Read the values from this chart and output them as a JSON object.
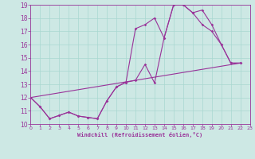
{
  "xlabel": "Windchill (Refroidissement éolien,°C)",
  "xlim": [
    0,
    23
  ],
  "ylim": [
    10,
    19
  ],
  "xticks": [
    0,
    1,
    2,
    3,
    4,
    5,
    6,
    7,
    8,
    9,
    10,
    11,
    12,
    13,
    14,
    15,
    16,
    17,
    18,
    19,
    20,
    21,
    22,
    23
  ],
  "yticks": [
    10,
    11,
    12,
    13,
    14,
    15,
    16,
    17,
    18,
    19
  ],
  "bg_color": "#cde8e4",
  "line_color": "#993399",
  "grid_color": "#a8d8d0",
  "line1_x": [
    0,
    1,
    2,
    3,
    4,
    5,
    6,
    7,
    8,
    9,
    10,
    11,
    12,
    13,
    14,
    15,
    16,
    17,
    18,
    19,
    20,
    21,
    22
  ],
  "line1_y": [
    12.0,
    11.3,
    10.4,
    10.65,
    10.9,
    10.6,
    10.5,
    10.4,
    11.75,
    12.8,
    13.15,
    17.2,
    17.5,
    18.0,
    16.5,
    19.0,
    19.0,
    18.4,
    18.6,
    17.5,
    16.0,
    14.6,
    14.6
  ],
  "line2_x": [
    0,
    1,
    2,
    3,
    4,
    5,
    6,
    7,
    8,
    9,
    10,
    11,
    12,
    13,
    14,
    15,
    16,
    17,
    18,
    19,
    20,
    21,
    22
  ],
  "line2_y": [
    12.0,
    11.3,
    10.4,
    10.65,
    10.9,
    10.6,
    10.5,
    10.4,
    11.75,
    12.8,
    13.15,
    13.3,
    14.5,
    13.1,
    16.5,
    19.0,
    19.0,
    18.4,
    17.5,
    17.0,
    16.0,
    14.6,
    14.6
  ],
  "line3_x": [
    0,
    22
  ],
  "line3_y": [
    12.0,
    14.6
  ]
}
